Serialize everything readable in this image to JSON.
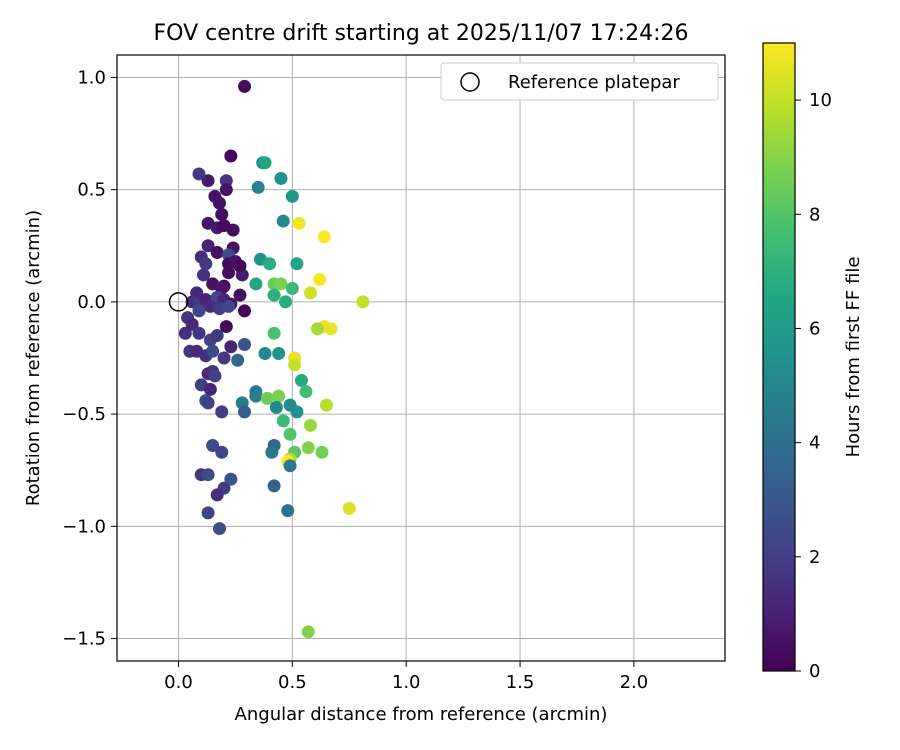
{
  "chart_data": {
    "type": "scatter",
    "title": "FOV centre drift starting at 2025/11/07 17:24:26",
    "xlabel": "Angular distance from reference (arcmin)",
    "ylabel": "Rotation from reference (arcmin)",
    "xlim": [
      -0.27,
      2.4
    ],
    "ylim": [
      -1.6,
      1.1
    ],
    "xticks": [
      0.0,
      0.5,
      1.0,
      1.5,
      2.0
    ],
    "xtick_labels": [
      "0.0",
      "0.5",
      "1.0",
      "1.5",
      "2.0"
    ],
    "yticks": [
      -1.5,
      -1.0,
      -0.5,
      0.0,
      0.5,
      1.0
    ],
    "ytick_labels": [
      "−1.5",
      "−1.0",
      "−0.5",
      "0.0",
      "0.5",
      "1.0"
    ],
    "grid": true,
    "legend": {
      "location": "top-right",
      "entries": [
        "Reference platepar"
      ]
    },
    "reference_point": {
      "x": 0.0,
      "y": 0.0,
      "label": "Reference platepar"
    },
    "colorbar": {
      "label": "Hours from first FF file",
      "range": [
        0,
        11
      ],
      "ticks": [
        0,
        2,
        4,
        6,
        8,
        10
      ],
      "tick_labels": [
        "0",
        "2",
        "4",
        "6",
        "8",
        "10"
      ],
      "colormap": "viridis"
    },
    "series": [
      {
        "name": "FOV centre drift",
        "points": [
          {
            "x": 0.29,
            "y": 0.96,
            "c": 0.3
          },
          {
            "x": 0.23,
            "y": 0.65,
            "c": 0.3
          },
          {
            "x": 0.13,
            "y": 0.54,
            "c": 0.8
          },
          {
            "x": 0.16,
            "y": 0.47,
            "c": 0.6
          },
          {
            "x": 0.09,
            "y": 0.57,
            "c": 1.8
          },
          {
            "x": 0.21,
            "y": 0.54,
            "c": 1.6
          },
          {
            "x": 0.21,
            "y": 0.5,
            "c": 0.5
          },
          {
            "x": 0.18,
            "y": 0.44,
            "c": 0.5
          },
          {
            "x": 0.19,
            "y": 0.39,
            "c": 0.4
          },
          {
            "x": 0.13,
            "y": 0.35,
            "c": 0.6
          },
          {
            "x": 0.17,
            "y": 0.33,
            "c": 0.7
          },
          {
            "x": 0.2,
            "y": 0.34,
            "c": 0.3
          },
          {
            "x": 0.24,
            "y": 0.32,
            "c": 0.4
          },
          {
            "x": 0.13,
            "y": 0.25,
            "c": 1.1
          },
          {
            "x": 0.24,
            "y": 0.24,
            "c": 0.6
          },
          {
            "x": 0.1,
            "y": 0.2,
            "c": 1.4
          },
          {
            "x": 0.12,
            "y": 0.17,
            "c": 1.8
          },
          {
            "x": 0.17,
            "y": 0.22,
            "c": 0.5
          },
          {
            "x": 0.22,
            "y": 0.21,
            "c": 2.5
          },
          {
            "x": 0.22,
            "y": 0.17,
            "c": 0.3
          },
          {
            "x": 0.25,
            "y": 0.18,
            "c": 0.6
          },
          {
            "x": 0.11,
            "y": 0.12,
            "c": 1.6
          },
          {
            "x": 0.22,
            "y": 0.13,
            "c": 0.3
          },
          {
            "x": 0.28,
            "y": 0.12,
            "c": 0.8
          },
          {
            "x": 0.27,
            "y": 0.16,
            "c": 0.2
          },
          {
            "x": 0.15,
            "y": 0.08,
            "c": 0.5
          },
          {
            "x": 0.2,
            "y": 0.07,
            "c": 0.3
          },
          {
            "x": 0.08,
            "y": 0.04,
            "c": 1.2
          },
          {
            "x": 0.19,
            "y": 0.06,
            "c": 0.6
          },
          {
            "x": 0.06,
            "y": 0.0,
            "c": 1.5
          },
          {
            "x": 0.09,
            "y": -0.01,
            "c": 1.9
          },
          {
            "x": 0.12,
            "y": 0.01,
            "c": 1.1
          },
          {
            "x": 0.17,
            "y": 0.02,
            "c": 2.4
          },
          {
            "x": 0.2,
            "y": 0.01,
            "c": 1.2
          },
          {
            "x": 0.23,
            "y": -0.01,
            "c": 0.6
          },
          {
            "x": 0.27,
            "y": 0.03,
            "c": 0.5
          },
          {
            "x": 0.04,
            "y": -0.07,
            "c": 1.7
          },
          {
            "x": 0.09,
            "y": -0.04,
            "c": 2.3
          },
          {
            "x": 0.14,
            "y": -0.02,
            "c": 1.3
          },
          {
            "x": 0.18,
            "y": -0.03,
            "c": 2.0
          },
          {
            "x": 0.22,
            "y": -0.02,
            "c": 2.2
          },
          {
            "x": 0.29,
            "y": -0.04,
            "c": 0.2
          },
          {
            "x": 0.03,
            "y": -0.14,
            "c": 1.4
          },
          {
            "x": 0.06,
            "y": -0.1,
            "c": 1.2
          },
          {
            "x": 0.09,
            "y": -0.14,
            "c": 1.7
          },
          {
            "x": 0.21,
            "y": -0.11,
            "c": 0.3
          },
          {
            "x": 0.14,
            "y": -0.17,
            "c": 2.1
          },
          {
            "x": 0.17,
            "y": -0.15,
            "c": 1.9
          },
          {
            "x": 0.23,
            "y": -0.2,
            "c": 1.1
          },
          {
            "x": 0.29,
            "y": -0.19,
            "c": 2.7
          },
          {
            "x": 0.05,
            "y": -0.22,
            "c": 1.8
          },
          {
            "x": 0.08,
            "y": -0.22,
            "c": 1.3
          },
          {
            "x": 0.12,
            "y": -0.24,
            "c": 1.5
          },
          {
            "x": 0.15,
            "y": -0.22,
            "c": 2.5
          },
          {
            "x": 0.2,
            "y": -0.25,
            "c": 1.8
          },
          {
            "x": 0.26,
            "y": -0.26,
            "c": 3.7
          },
          {
            "x": 0.13,
            "y": -0.32,
            "c": 1.2
          },
          {
            "x": 0.15,
            "y": -0.31,
            "c": 1.6
          },
          {
            "x": 0.16,
            "y": -0.33,
            "c": 2.1
          },
          {
            "x": 0.1,
            "y": -0.37,
            "c": 2.0
          },
          {
            "x": 0.14,
            "y": -0.39,
            "c": 1.2
          },
          {
            "x": 0.12,
            "y": -0.44,
            "c": 2.4
          },
          {
            "x": 0.13,
            "y": -0.45,
            "c": 2.1
          },
          {
            "x": 0.19,
            "y": -0.49,
            "c": 2.0
          },
          {
            "x": 0.15,
            "y": -0.64,
            "c": 2.5
          },
          {
            "x": 0.19,
            "y": -0.67,
            "c": 2.2
          },
          {
            "x": 0.1,
            "y": -0.77,
            "c": 1.6
          },
          {
            "x": 0.13,
            "y": -0.77,
            "c": 2.5
          },
          {
            "x": 0.23,
            "y": -0.79,
            "c": 2.8
          },
          {
            "x": 0.2,
            "y": -0.83,
            "c": 2.0
          },
          {
            "x": 0.17,
            "y": -0.86,
            "c": 1.4
          },
          {
            "x": 0.13,
            "y": -0.94,
            "c": 2.2
          },
          {
            "x": 0.18,
            "y": -1.01,
            "c": 2.6
          },
          {
            "x": 0.37,
            "y": 0.62,
            "c": 5.2
          },
          {
            "x": 0.38,
            "y": 0.62,
            "c": 6.4
          },
          {
            "x": 0.45,
            "y": 0.55,
            "c": 5.5
          },
          {
            "x": 0.35,
            "y": 0.51,
            "c": 4.9
          },
          {
            "x": 0.5,
            "y": 0.47,
            "c": 5.8
          },
          {
            "x": 0.46,
            "y": 0.36,
            "c": 5.1
          },
          {
            "x": 0.53,
            "y": 0.35,
            "c": 10.8
          },
          {
            "x": 0.64,
            "y": 0.29,
            "c": 11.0
          },
          {
            "x": 0.36,
            "y": 0.19,
            "c": 5.7
          },
          {
            "x": 0.4,
            "y": 0.17,
            "c": 6.9
          },
          {
            "x": 0.52,
            "y": 0.17,
            "c": 6.4
          },
          {
            "x": 0.62,
            "y": 0.1,
            "c": 10.9
          },
          {
            "x": 0.34,
            "y": 0.08,
            "c": 6.5
          },
          {
            "x": 0.42,
            "y": 0.08,
            "c": 8.5
          },
          {
            "x": 0.45,
            "y": 0.08,
            "c": 8.8
          },
          {
            "x": 0.5,
            "y": 0.06,
            "c": 7.4
          },
          {
            "x": 0.58,
            "y": 0.04,
            "c": 10.2
          },
          {
            "x": 0.42,
            "y": 0.03,
            "c": 7.0
          },
          {
            "x": 0.47,
            "y": 0.0,
            "c": 6.8
          },
          {
            "x": 0.81,
            "y": 0.0,
            "c": 10.0
          },
          {
            "x": 0.64,
            "y": -0.11,
            "c": 10.7
          },
          {
            "x": 0.67,
            "y": -0.12,
            "c": 10.6
          },
          {
            "x": 0.61,
            "y": -0.12,
            "c": 9.5
          },
          {
            "x": 0.42,
            "y": -0.14,
            "c": 7.8
          },
          {
            "x": 0.38,
            "y": -0.23,
            "c": 5.1
          },
          {
            "x": 0.44,
            "y": -0.23,
            "c": 5.6
          },
          {
            "x": 0.51,
            "y": -0.25,
            "c": 10.6
          },
          {
            "x": 0.51,
            "y": -0.28,
            "c": 10.0
          },
          {
            "x": 0.54,
            "y": -0.35,
            "c": 6.7
          },
          {
            "x": 0.56,
            "y": -0.4,
            "c": 7.6
          },
          {
            "x": 0.34,
            "y": -0.4,
            "c": 4.3
          },
          {
            "x": 0.34,
            "y": -0.42,
            "c": 4.7
          },
          {
            "x": 0.39,
            "y": -0.43,
            "c": 8.5
          },
          {
            "x": 0.44,
            "y": -0.42,
            "c": 8.8
          },
          {
            "x": 0.28,
            "y": -0.45,
            "c": 4.5
          },
          {
            "x": 0.43,
            "y": -0.47,
            "c": 5.1
          },
          {
            "x": 0.49,
            "y": -0.46,
            "c": 5.2
          },
          {
            "x": 0.52,
            "y": -0.49,
            "c": 5.6
          },
          {
            "x": 0.29,
            "y": -0.49,
            "c": 3.2
          },
          {
            "x": 0.65,
            "y": -0.46,
            "c": 9.8
          },
          {
            "x": 0.46,
            "y": -0.53,
            "c": 7.4
          },
          {
            "x": 0.58,
            "y": -0.55,
            "c": 9.3
          },
          {
            "x": 0.49,
            "y": -0.59,
            "c": 8.0
          },
          {
            "x": 0.42,
            "y": -0.64,
            "c": 3.6
          },
          {
            "x": 0.57,
            "y": -0.65,
            "c": 8.9
          },
          {
            "x": 0.63,
            "y": -0.67,
            "c": 8.7
          },
          {
            "x": 0.41,
            "y": -0.67,
            "c": 4.3
          },
          {
            "x": 0.51,
            "y": -0.67,
            "c": 8.1
          },
          {
            "x": 0.49,
            "y": -0.7,
            "c": 9.6
          },
          {
            "x": 0.48,
            "y": -0.71,
            "c": 11.0
          },
          {
            "x": 0.49,
            "y": -0.73,
            "c": 4.5
          },
          {
            "x": 0.42,
            "y": -0.82,
            "c": 3.5
          },
          {
            "x": 0.48,
            "y": -0.93,
            "c": 4.2
          },
          {
            "x": 0.75,
            "y": -0.92,
            "c": 10.4
          },
          {
            "x": 0.57,
            "y": -1.47,
            "c": 8.9
          }
        ]
      }
    ]
  }
}
